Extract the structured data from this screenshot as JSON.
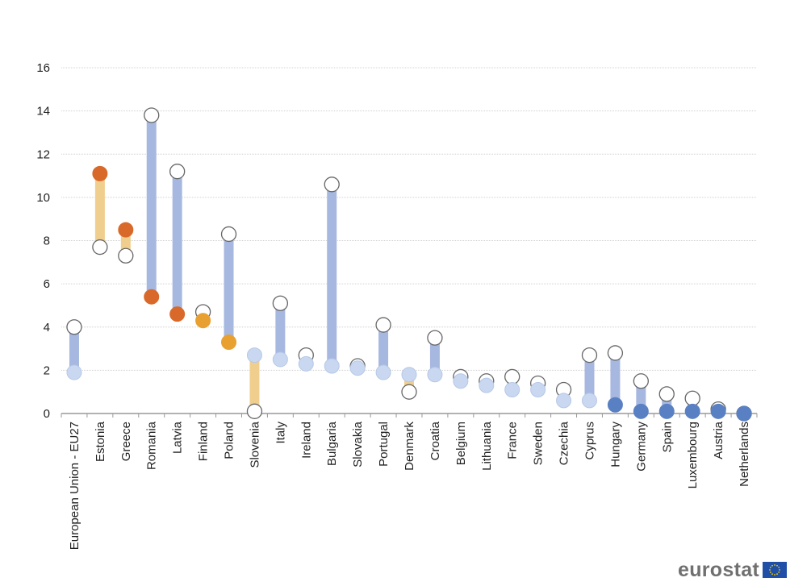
{
  "chart_data": {
    "type": "dumbbell",
    "title": "",
    "xlabel": "",
    "ylabel": "",
    "ylim": [
      0,
      16
    ],
    "yticks": [
      0,
      2,
      4,
      6,
      8,
      10,
      12,
      14,
      16
    ],
    "grid": true,
    "categories": [
      "European Union - EU27",
      "Estonia",
      "Greece",
      "Romania",
      "Latvia",
      "Finland",
      "Poland",
      "Slovenia",
      "Italy",
      "Ireland",
      "Bulgaria",
      "Slovakia",
      "Portugal",
      "Denmark",
      "Croatia",
      "Belgium",
      "Lithuania",
      "France",
      "Sweden",
      "Czechia",
      "Cyprus",
      "Hungary",
      "Germany",
      "Spain",
      "Luxembourg",
      "Austria",
      "Netherlands"
    ],
    "series": [
      {
        "name": "open-marker",
        "values": [
          4.0,
          7.7,
          7.3,
          13.8,
          11.2,
          4.7,
          8.3,
          0.1,
          5.1,
          2.7,
          10.6,
          2.2,
          4.1,
          1.0,
          3.5,
          1.7,
          1.5,
          1.7,
          1.4,
          1.1,
          2.7,
          2.8,
          1.5,
          0.9,
          0.7,
          0.2,
          0.0
        ]
      },
      {
        "name": "filled-marker",
        "values": [
          1.9,
          11.1,
          8.5,
          5.4,
          4.6,
          4.3,
          3.3,
          2.7,
          2.5,
          2.3,
          2.2,
          2.1,
          1.9,
          1.8,
          1.8,
          1.5,
          1.3,
          1.1,
          1.1,
          0.6,
          0.6,
          0.4,
          0.1,
          0.1,
          0.1,
          0.1,
          0.0
        ]
      }
    ],
    "filled_marker_colors": [
      "#c9d8f0",
      "#d9692a",
      "#d9692a",
      "#d9692a",
      "#d9692a",
      "#e8a030",
      "#e8a030",
      "#c9d8f0",
      "#c9d8f0",
      "#c9d8f0",
      "#c9d8f0",
      "#c9d8f0",
      "#c9d8f0",
      "#c9d8f0",
      "#c9d8f0",
      "#c9d8f0",
      "#c9d8f0",
      "#c9d8f0",
      "#c9d8f0",
      "#c9d8f0",
      "#c9d8f0",
      "#5a80c4",
      "#5a80c4",
      "#5a80c4",
      "#5a80c4",
      "#5a80c4",
      "#5a80c4"
    ],
    "bar_colors": {
      "increase": "#a7b8e0",
      "decrease": "#f0cf8e"
    }
  },
  "logo": {
    "text": "eurostat"
  }
}
